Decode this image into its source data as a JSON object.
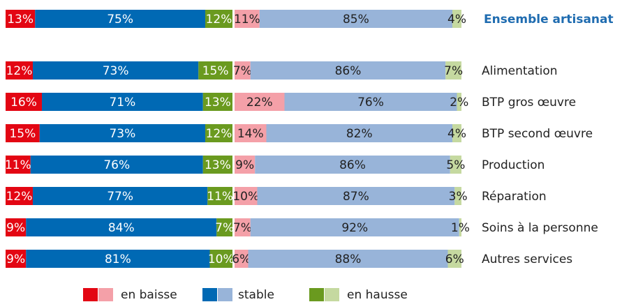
{
  "chart_data": [
    {
      "type": "bar",
      "orientation": "horizontal",
      "stacked": true,
      "xlim": [
        0,
        100
      ],
      "series": [
        {
          "name": "en baisse",
          "color": "#e30613",
          "values": [
            13,
            12,
            16,
            15,
            11,
            12,
            9,
            9
          ],
          "value_labels": [
            "13%",
            "12%",
            "16%",
            "15%",
            "11%",
            "12%",
            "9%",
            "9%"
          ]
        },
        {
          "name": "stable",
          "color": "#0069b4",
          "values": [
            75,
            73,
            71,
            73,
            76,
            77,
            84,
            81
          ],
          "value_labels": [
            "75%",
            "73%",
            "71%",
            "73%",
            "76%",
            "77%",
            "84%",
            "81%"
          ]
        },
        {
          "name": "en hausse",
          "color": "#6a9a1f",
          "values": [
            12,
            15,
            13,
            12,
            13,
            11,
            7,
            10
          ],
          "value_labels": [
            "12%",
            "15%",
            "13%",
            "12%",
            "13%",
            "11%",
            "7%",
            "10%"
          ]
        }
      ]
    },
    {
      "type": "bar",
      "orientation": "horizontal",
      "stacked": true,
      "xlim": [
        0,
        100
      ],
      "categories": [
        "Ensemble artisanat",
        "Alimentation",
        "BTP gros œuvre",
        "BTP second œuvre",
        "Production",
        "Réparation",
        "Soins à la personne",
        "Autres services"
      ],
      "series": [
        {
          "color": "#f4a0a8",
          "values": [
            11,
            7,
            22,
            14,
            9,
            10,
            7,
            6
          ],
          "value_labels": [
            "11%",
            "7%",
            "22%",
            "14%",
            "9%",
            "10%",
            "7%",
            "6%"
          ]
        },
        {
          "color": "#98b4d9",
          "values": [
            85,
            86,
            76,
            82,
            86,
            87,
            92,
            88
          ],
          "value_labels": [
            "85%",
            "86%",
            "76%",
            "82%",
            "86%",
            "87%",
            "92%",
            "88%"
          ]
        },
        {
          "color": "#c5d9a0",
          "values": [
            4,
            7,
            2,
            4,
            5,
            3,
            1,
            6
          ],
          "value_labels": [
            "4%",
            "7%",
            "2%",
            "4%",
            "5%",
            "3%",
            "1%",
            "6%"
          ]
        }
      ]
    }
  ]
}
